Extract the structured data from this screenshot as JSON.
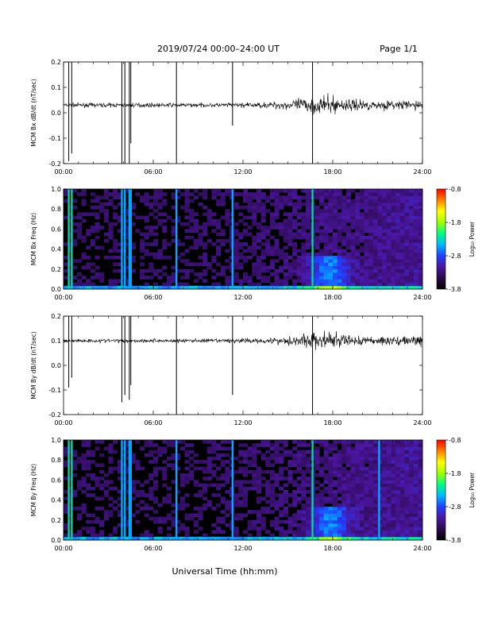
{
  "header": {
    "title": "2019/07/24  00:00–24:00 UT",
    "page": "Page 1/1"
  },
  "xlabel": "Universal Time (hh:mm)",
  "colors": {
    "trace": "#000000",
    "background": "#ffffff",
    "colormap": [
      "#000000",
      "#2a0a4a",
      "#4a16a0",
      "#2040ff",
      "#00b8ff",
      "#00ff80",
      "#a0ff00",
      "#ffff00",
      "#ff8000",
      "#ff0000"
    ]
  },
  "chart_data": [
    {
      "type": "line",
      "ylabel": "MCM Bx dB/dt (nT/sec)",
      "xlim": [
        0,
        24
      ],
      "xticks": [
        "00:00",
        "06:00",
        "12:00",
        "18:00",
        "24:00"
      ],
      "ylim": [
        -0.2,
        0.2
      ],
      "yticks": [
        "0.2",
        "0.1",
        "0.0",
        "-0.1",
        "-0.2"
      ],
      "baseline": 0.03,
      "spikes": [
        {
          "t": 0.35,
          "min": -0.19,
          "max": 0.2
        },
        {
          "t": 0.55,
          "min": -0.16,
          "max": 0.2
        },
        {
          "t": 3.9,
          "min": -0.2,
          "max": 0.2
        },
        {
          "t": 4.1,
          "min": -0.2,
          "max": 0.2
        },
        {
          "t": 4.4,
          "min": -0.2,
          "max": 0.2
        },
        {
          "t": 4.5,
          "min": -0.12,
          "max": 0.2
        },
        {
          "t": 7.55,
          "min": -0.2,
          "max": 0.2
        },
        {
          "t": 11.3,
          "min": -0.05,
          "max": 0.2
        },
        {
          "t": 16.65,
          "min": -0.2,
          "max": 0.2
        }
      ]
    },
    {
      "type": "heatmap",
      "ylabel": "MCM Bx Freq (Hz)",
      "xlim": [
        0,
        24
      ],
      "xticks": [
        "00:00",
        "06:00",
        "12:00",
        "18:00",
        "24:00"
      ],
      "ylim": [
        0,
        1
      ],
      "yticks": [
        "1.0",
        "0.8",
        "0.6",
        "0.4",
        "0.2",
        "0.0"
      ],
      "colorbar": {
        "label": "Log₁₀ Power",
        "range": [
          -3.8,
          -0.8
        ],
        "ticks": [
          "-0.8",
          "-1.8",
          "-2.8",
          "-3.8"
        ]
      },
      "bursts": [
        0.35,
        0.55,
        3.9,
        4.1,
        4.4,
        4.5,
        7.55,
        11.3,
        16.65
      ]
    },
    {
      "type": "line",
      "ylabel": "MCM By dB/dt (nT/sec)",
      "xlim": [
        0,
        24
      ],
      "xticks": [
        "00:00",
        "06:00",
        "12:00",
        "18:00",
        "24:00"
      ],
      "ylim": [
        -0.2,
        0.2
      ],
      "yticks": [
        "0.2",
        "0.1",
        "0.0",
        "-0.1",
        "-0.2"
      ],
      "baseline": 0.1,
      "spikes": [
        {
          "t": 0.35,
          "min": -0.09,
          "max": 0.2
        },
        {
          "t": 0.55,
          "min": -0.05,
          "max": 0.2
        },
        {
          "t": 3.9,
          "min": -0.15,
          "max": 0.2
        },
        {
          "t": 4.1,
          "min": -0.12,
          "max": 0.2
        },
        {
          "t": 4.4,
          "min": -0.14,
          "max": 0.2
        },
        {
          "t": 4.5,
          "min": -0.08,
          "max": 0.2
        },
        {
          "t": 7.55,
          "min": -0.2,
          "max": 0.2
        },
        {
          "t": 11.3,
          "min": -0.12,
          "max": 0.2
        },
        {
          "t": 16.65,
          "min": -0.2,
          "max": 0.2
        }
      ]
    },
    {
      "type": "heatmap",
      "ylabel": "MCM By Freq (Hz)",
      "xlim": [
        0,
        24
      ],
      "xticks": [
        "00:00",
        "06:00",
        "12:00",
        "18:00",
        "24:00"
      ],
      "ylim": [
        0,
        1
      ],
      "yticks": [
        "1.0",
        "0.8",
        "0.6",
        "0.4",
        "0.2",
        "0.0"
      ],
      "colorbar": {
        "label": "Log₁₀ Power",
        "range": [
          -3.8,
          -0.8
        ],
        "ticks": [
          "-0.8",
          "-1.8",
          "-2.8",
          "-3.8"
        ]
      },
      "bursts": [
        0.35,
        0.55,
        3.9,
        4.1,
        4.4,
        4.5,
        7.55,
        11.3,
        16.65,
        21.1
      ]
    }
  ]
}
